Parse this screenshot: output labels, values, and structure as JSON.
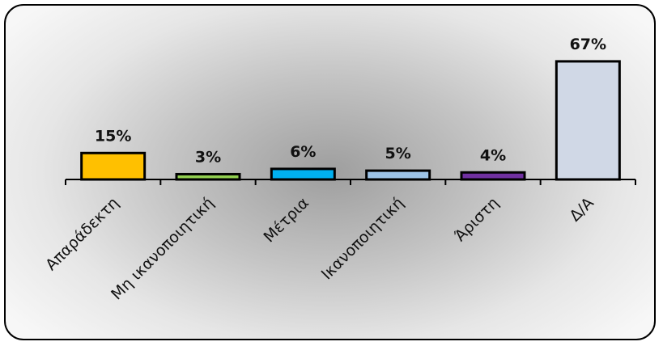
{
  "chart_data": {
    "type": "bar",
    "categories": [
      "Απαράδεκτη",
      "Μη ικανοποιητική",
      "Μέτρια",
      "Ικανοποιητική",
      "Άριστη",
      "Δ/Α"
    ],
    "values": [
      15,
      3,
      6,
      5,
      4,
      67
    ],
    "value_labels": [
      "15%",
      "3%",
      "6%",
      "5%",
      "4%",
      "67%"
    ],
    "colors": [
      "#ffc000",
      "#92d050",
      "#00b0f0",
      "#9dc3e6",
      "#7030a0",
      "#d0d8e6"
    ],
    "unit": "%",
    "ylim": [
      0,
      72
    ],
    "grid": false,
    "legend": "none"
  }
}
